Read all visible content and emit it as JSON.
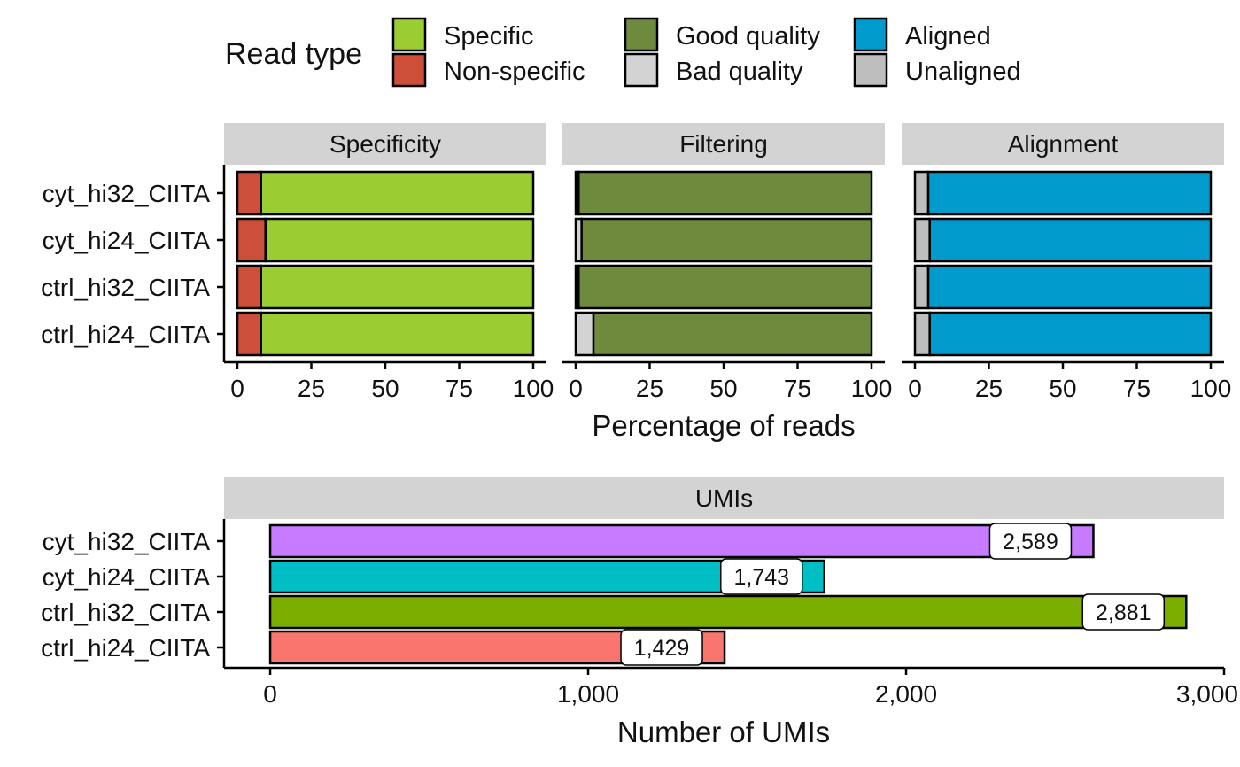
{
  "legend": {
    "title": "Read type",
    "items": [
      {
        "label": "Specific",
        "color": "#9ACD32"
      },
      {
        "label": "Non-specific",
        "color": "#CD4F39"
      },
      {
        "label": "Good quality",
        "color": "#6E8B3D"
      },
      {
        "label": "Bad quality",
        "color": "#D3D3D3"
      },
      {
        "label": "Aligned",
        "color": "#009ACD"
      },
      {
        "label": "Unaligned",
        "color": "#BEBEBE"
      }
    ]
  },
  "chart_data": [
    {
      "type": "bar",
      "orientation": "horizontal",
      "stacked": true,
      "xlabel": "Percentage of reads",
      "xlim": [
        0,
        100
      ],
      "xticks": [
        "0",
        "25",
        "50",
        "75",
        "100"
      ],
      "categories": [
        "cyt_hi32_CIITA",
        "cyt_hi24_CIITA",
        "ctrl_hi32_CIITA",
        "ctrl_hi24_CIITA"
      ],
      "panels": [
        {
          "title": "Specificity",
          "series": [
            {
              "name": "Non-specific",
              "color": "#CD4F39",
              "values": [
                8,
                9.5,
                8,
                8
              ]
            },
            {
              "name": "Specific",
              "color": "#9ACD32",
              "values": [
                92,
                90.5,
                92,
                92
              ]
            }
          ]
        },
        {
          "title": "Filtering",
          "series": [
            {
              "name": "Bad quality",
              "color": "#D3D3D3",
              "values": [
                1,
                2,
                1,
                6
              ]
            },
            {
              "name": "Good quality",
              "color": "#6E8B3D",
              "values": [
                99,
                98,
                99,
                94
              ]
            }
          ]
        },
        {
          "title": "Alignment",
          "series": [
            {
              "name": "Unaligned",
              "color": "#BEBEBE",
              "values": [
                4.5,
                5,
                4.5,
                5
              ]
            },
            {
              "name": "Aligned",
              "color": "#009ACD",
              "values": [
                95.5,
                95,
                95.5,
                95
              ]
            }
          ]
        }
      ],
      "grid": false
    },
    {
      "type": "bar",
      "orientation": "horizontal",
      "title": "UMIs",
      "xlabel": "Number of UMIs",
      "xlim": [
        -145,
        3000
      ],
      "xticks": [
        0,
        1000,
        2000,
        3000
      ],
      "xtick_labels": [
        "0",
        "1,000",
        "2,000",
        "3,000"
      ],
      "categories": [
        "cyt_hi32_CIITA",
        "cyt_hi24_CIITA",
        "ctrl_hi32_CIITA",
        "ctrl_hi24_CIITA"
      ],
      "values": [
        2589,
        1743,
        2881,
        1429
      ],
      "labels": [
        "2,589",
        "1,743",
        "2,881",
        "1,429"
      ],
      "colors": [
        "#C77CFF",
        "#00BFC4",
        "#7CAE00",
        "#F8766D"
      ],
      "grid": false
    }
  ]
}
